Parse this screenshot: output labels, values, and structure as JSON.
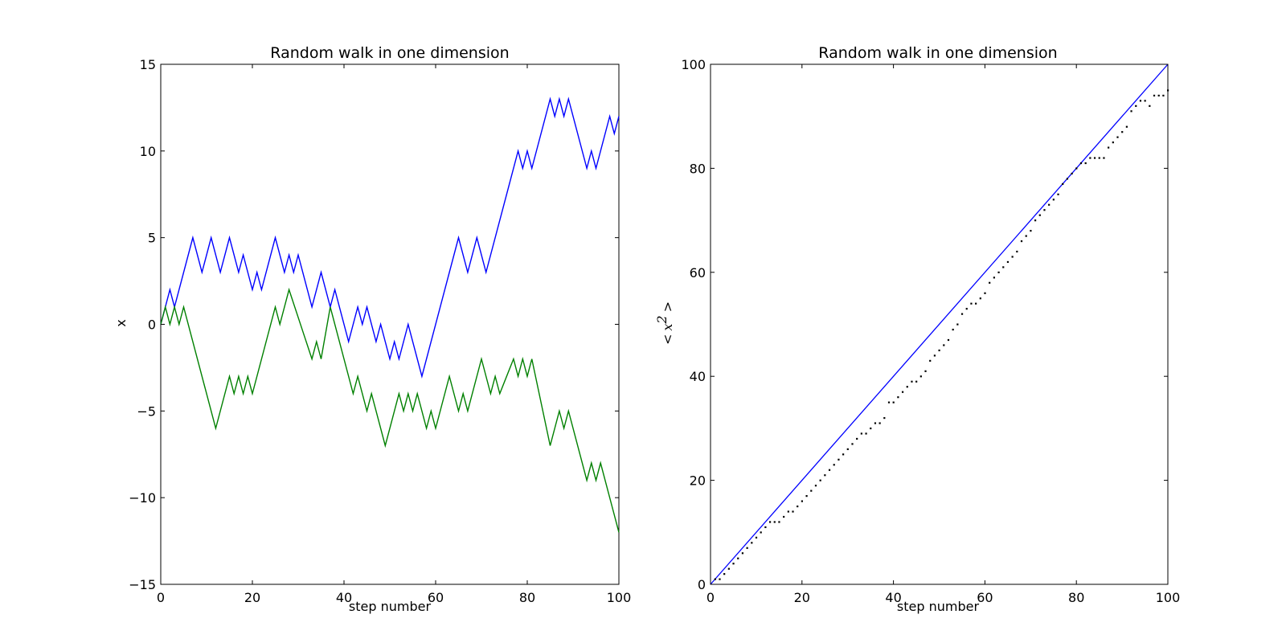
{
  "chart_data": [
    {
      "type": "line",
      "title": "Random walk in one dimension",
      "xlabel": "step number",
      "ylabel": "x",
      "xlim": [
        0,
        100
      ],
      "ylim": [
        -15,
        15
      ],
      "xticks": [
        "0",
        "20",
        "40",
        "60",
        "80",
        "100"
      ],
      "yticks": [
        "−15",
        "−10",
        "−5",
        "0",
        "5",
        "10",
        "15"
      ],
      "grid": false,
      "series": [
        {
          "color": "#0000ff",
          "x": [
            0,
            2,
            3,
            7,
            9,
            11,
            13,
            15,
            17,
            18,
            20,
            21,
            22,
            25,
            27,
            28,
            29,
            30,
            33,
            35,
            37,
            38,
            41,
            43,
            44,
            45,
            47,
            48,
            50,
            51,
            52,
            54,
            57,
            65,
            67,
            69,
            71,
            78,
            79,
            80,
            81,
            85,
            86,
            87,
            88,
            89,
            93,
            94,
            95,
            98,
            99,
            100
          ],
          "y": [
            0,
            2,
            1,
            5,
            3,
            5,
            3,
            5,
            3,
            4,
            2,
            3,
            2,
            5,
            3,
            4,
            3,
            4,
            1,
            3,
            1,
            2,
            -1,
            1,
            0,
            1,
            -1,
            0,
            -2,
            -1,
            -2,
            0,
            -3,
            5,
            3,
            5,
            3,
            10,
            9,
            10,
            9,
            13,
            12,
            13,
            12,
            13,
            9,
            10,
            9,
            12,
            11,
            12
          ]
        },
        {
          "color": "#008000",
          "x": [
            0,
            1,
            2,
            3,
            4,
            5,
            12,
            15,
            16,
            17,
            18,
            19,
            20,
            25,
            26,
            28,
            33,
            34,
            35,
            37,
            42,
            43,
            45,
            46,
            49,
            52,
            53,
            54,
            55,
            56,
            58,
            59,
            60,
            63,
            65,
            66,
            67,
            70,
            72,
            73,
            74,
            77,
            78,
            79,
            80,
            81,
            85,
            87,
            88,
            89,
            93,
            94,
            95,
            96,
            100
          ],
          "y": [
            0,
            1,
            0,
            1,
            0,
            1,
            -6,
            -3,
            -4,
            -3,
            -4,
            -3,
            -4,
            1,
            0,
            2,
            -2,
            -1,
            -2,
            1,
            -4,
            -3,
            -5,
            -4,
            -7,
            -4,
            -5,
            -4,
            -5,
            -4,
            -6,
            -5,
            -6,
            -3,
            -5,
            -4,
            -5,
            -2,
            -4,
            -3,
            -4,
            -2,
            -3,
            -2,
            -3,
            -2,
            -7,
            -5,
            -6,
            -5,
            -9,
            -8,
            -9,
            -8,
            -12
          ]
        }
      ]
    },
    {
      "type": "scatter",
      "title": "Random walk in one dimension",
      "xlabel": "step number",
      "ylabel": "<x^2>",
      "xlim": [
        0,
        100
      ],
      "ylim": [
        0,
        100
      ],
      "xticks": [
        "0",
        "20",
        "40",
        "60",
        "80",
        "100"
      ],
      "yticks": [
        "0",
        "20",
        "40",
        "60",
        "80",
        "100"
      ],
      "grid": false,
      "reference_line": {
        "color": "#0000ff",
        "x": [
          0,
          100
        ],
        "y": [
          0,
          100
        ]
      },
      "series": [
        {
          "color": "#000000",
          "x": [
            1,
            2,
            3,
            4,
            5,
            6,
            7,
            8,
            9,
            10,
            11,
            12,
            13,
            14,
            15,
            16,
            17,
            18,
            19,
            20,
            21,
            22,
            23,
            24,
            25,
            26,
            27,
            28,
            29,
            30,
            31,
            32,
            33,
            34,
            35,
            36,
            37,
            38,
            39,
            40,
            41,
            42,
            43,
            44,
            45,
            46,
            47,
            48,
            49,
            50,
            51,
            52,
            53,
            54,
            55,
            56,
            57,
            58,
            59,
            60,
            61,
            62,
            63,
            64,
            65,
            66,
            67,
            68,
            69,
            70,
            71,
            72,
            73,
            74,
            75,
            76,
            77,
            78,
            79,
            80,
            81,
            82,
            83,
            84,
            85,
            86,
            87,
            88,
            89,
            90,
            91,
            92,
            93,
            94,
            95,
            96,
            97,
            98,
            99,
            100
          ],
          "y": [
            1,
            1,
            2,
            3,
            4,
            5,
            6,
            7,
            8,
            9,
            10,
            11,
            12,
            12,
            12,
            13,
            14,
            14,
            15,
            16,
            17,
            18,
            19,
            20,
            21,
            22,
            23,
            24,
            25,
            26,
            27,
            28,
            29,
            29,
            30,
            31,
            31,
            32,
            35,
            35,
            36,
            37,
            38,
            39,
            39,
            40,
            41,
            43,
            44,
            45,
            46,
            47,
            49,
            50,
            52,
            53,
            54,
            54,
            55,
            56,
            58,
            59,
            60,
            61,
            62,
            63,
            64,
            66,
            67,
            68,
            70,
            71,
            72,
            73,
            74,
            75,
            77,
            78,
            79,
            80,
            81,
            81,
            82,
            82,
            82,
            82,
            84,
            85,
            86,
            87,
            88,
            91,
            92,
            93,
            93,
            92,
            94,
            94,
            94,
            95
          ]
        }
      ]
    }
  ]
}
